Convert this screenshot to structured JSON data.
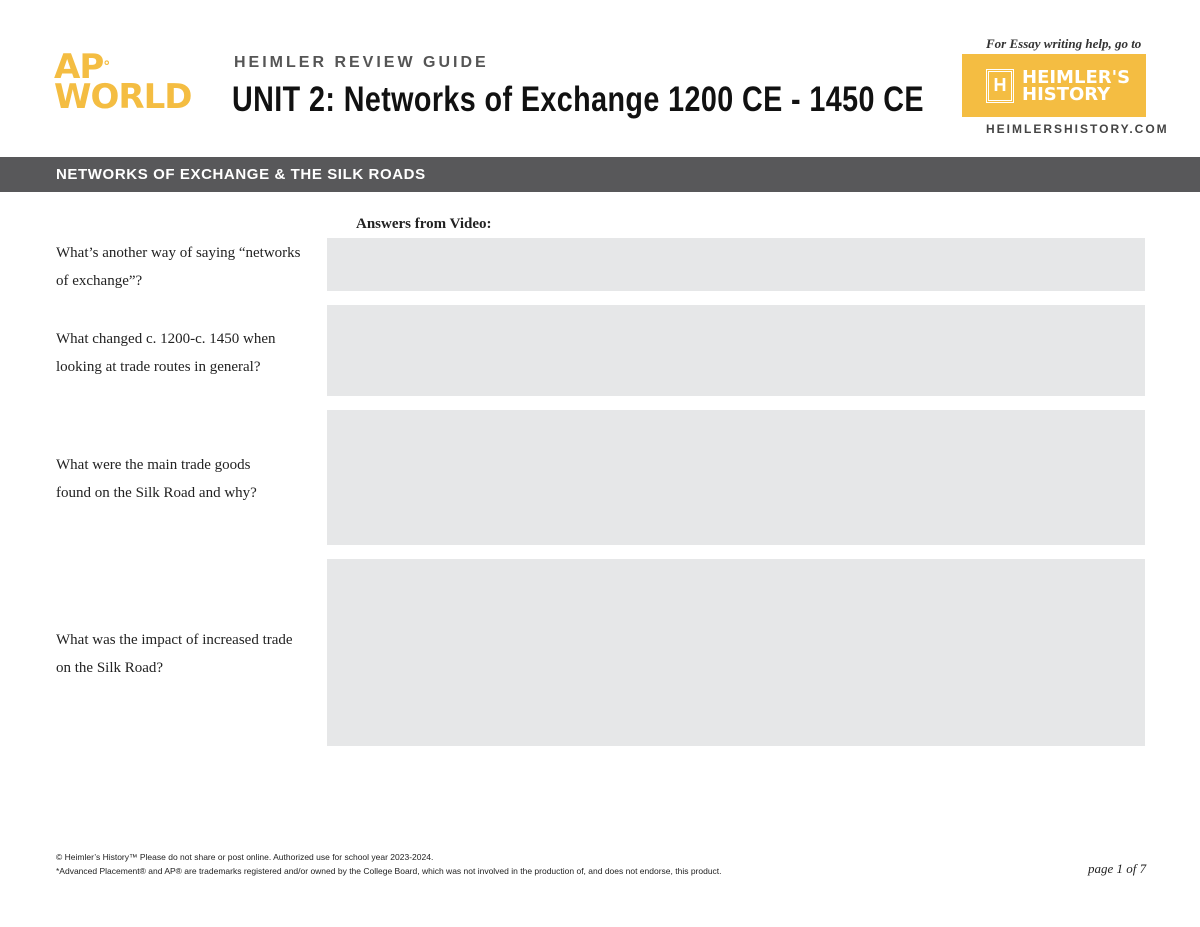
{
  "header": {
    "logo_line1": "AP",
    "logo_line2": "WORLD",
    "guide": "HEIMLER REVIEW GUIDE",
    "title": "UNIT 2: Networks of Exchange 1200 CE - 1450 CE",
    "essay_note": "For Essay writing help, go to",
    "brand_line1": "HEIMLER'S",
    "brand_line2": "HISTORY",
    "brand_icon": "H",
    "site": "HEIMLERSHISTORY.COM"
  },
  "section": {
    "title": "NETWORKS OF EXCHANGE & THE SILK ROADS",
    "answers_label": "Answers from Video:"
  },
  "questions": [
    {
      "text": "What’s another way of saying “networks of exchange”?"
    },
    {
      "text": "What changed c. 1200-c. 1450 when looking at trade routes in general?"
    },
    {
      "text": "What were the main trade goods found on the Silk Road and why?"
    },
    {
      "text": "What was the impact of increased trade on the Silk Road?"
    }
  ],
  "footer": {
    "line1": "© Heimler’s History™  Please do not share or post online. Authorized use for school year 2023-2024.",
    "line2": "*Advanced Placement® and AP® are trademarks registered and/or owned by the College Board, which was not involved in the production of, and does not endorse, this product.",
    "page": "page 1 of 7"
  },
  "colors": {
    "accent": "#f4bd42",
    "band": "#58585a",
    "answer_box": "#e6e7e8"
  }
}
